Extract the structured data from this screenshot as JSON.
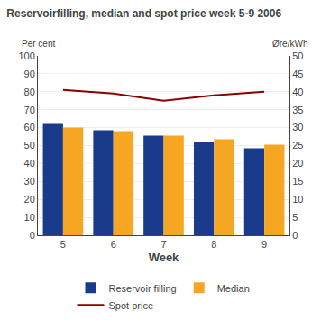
{
  "chart_data": {
    "type": "bar",
    "title": "Reservoirfilling, median and spot price week 5-9 2006",
    "xlabel": "Week",
    "ylabel": "Per cent",
    "y2label": "Øre/kWh",
    "categories": [
      "5",
      "6",
      "7",
      "8",
      "9"
    ],
    "series": [
      {
        "name": "Reservoir filling",
        "type": "bar",
        "color": "#1a3a8c",
        "values": [
          62,
          58.5,
          55.5,
          52,
          48.5
        ]
      },
      {
        "name": "Median",
        "type": "bar",
        "color": "#f5a623",
        "values": [
          60,
          58,
          55.5,
          53.5,
          50.5
        ]
      },
      {
        "name": "Spot price",
        "type": "line",
        "axis": "y2",
        "color": "#8b0000",
        "values": [
          40.5,
          39.5,
          37.5,
          39,
          40
        ]
      }
    ],
    "ylim": [
      0,
      100
    ],
    "yticks": [
      0,
      10,
      20,
      30,
      40,
      50,
      60,
      70,
      80,
      90,
      100
    ],
    "y2lim": [
      0,
      50
    ],
    "y2ticks": [
      0,
      5,
      10,
      15,
      20,
      25,
      30,
      35,
      40,
      45,
      50
    ],
    "grid": true,
    "legend": "bottom"
  }
}
